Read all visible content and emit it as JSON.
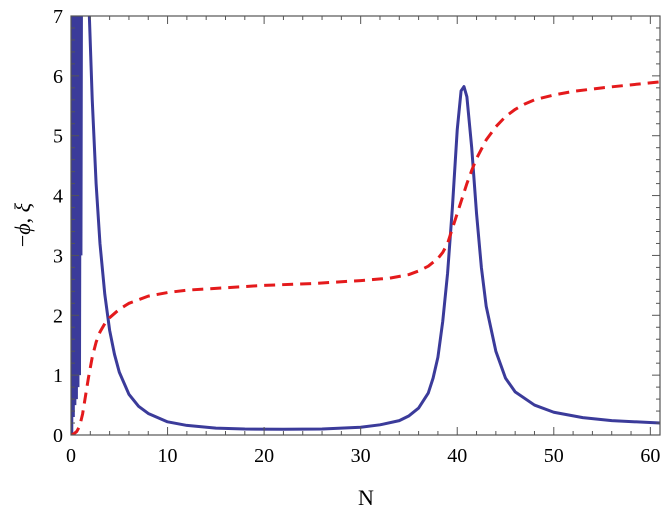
{
  "chart_data": {
    "type": "line",
    "xlabel": "N",
    "ylabel": {
      "minus": "−",
      "phi": "ϕ",
      "sep": ", ",
      "xi": "ξ"
    },
    "xlim": [
      0,
      61
    ],
    "ylim": [
      0,
      7
    ],
    "xticks": [
      0,
      10,
      20,
      30,
      40,
      50,
      60
    ],
    "yticks": [
      0,
      1,
      2,
      3,
      4,
      5,
      6,
      7
    ],
    "grid": false,
    "series": [
      {
        "style": "solid",
        "color": "#3b3b9a",
        "oscillation": {
          "x_start": 0.1,
          "x_end": 1.1,
          "wiggles": [
            [
              0.1,
              0.0
            ],
            [
              0.18,
              7.0
            ],
            [
              0.26,
              0.3
            ],
            [
              0.34,
              7.0
            ],
            [
              0.42,
              0.5
            ],
            [
              0.5,
              7.0
            ],
            [
              0.58,
              0.6
            ],
            [
              0.66,
              7.0
            ],
            [
              0.74,
              0.8
            ],
            [
              0.82,
              7.0
            ],
            [
              0.9,
              1.0
            ],
            [
              0.98,
              7.0
            ],
            [
              1.05,
              3.0
            ],
            [
              1.1,
              7.0
            ]
          ]
        },
        "points": [
          [
            1.9,
            7.0
          ],
          [
            2.2,
            5.6
          ],
          [
            2.6,
            4.2
          ],
          [
            3.0,
            3.2
          ],
          [
            3.5,
            2.35
          ],
          [
            4.0,
            1.75
          ],
          [
            4.5,
            1.35
          ],
          [
            5.0,
            1.05
          ],
          [
            6.0,
            0.68
          ],
          [
            7.0,
            0.48
          ],
          [
            8.0,
            0.36
          ],
          [
            10.0,
            0.22
          ],
          [
            12.0,
            0.16
          ],
          [
            15.0,
            0.115
          ],
          [
            18.0,
            0.1
          ],
          [
            22.0,
            0.095
          ],
          [
            26.0,
            0.1
          ],
          [
            30.0,
            0.13
          ],
          [
            32.0,
            0.17
          ],
          [
            34.0,
            0.24
          ],
          [
            35.0,
            0.32
          ],
          [
            36.0,
            0.45
          ],
          [
            37.0,
            0.7
          ],
          [
            37.5,
            0.95
          ],
          [
            38.0,
            1.3
          ],
          [
            38.5,
            1.9
          ],
          [
            39.0,
            2.7
          ],
          [
            39.5,
            3.8
          ],
          [
            40.0,
            5.1
          ],
          [
            40.4,
            5.75
          ],
          [
            40.7,
            5.82
          ],
          [
            41.0,
            5.65
          ],
          [
            41.5,
            4.8
          ],
          [
            42.0,
            3.7
          ],
          [
            42.5,
            2.8
          ],
          [
            43.0,
            2.15
          ],
          [
            44.0,
            1.4
          ],
          [
            45.0,
            0.95
          ],
          [
            46.0,
            0.72
          ],
          [
            48.0,
            0.5
          ],
          [
            50.0,
            0.38
          ],
          [
            53.0,
            0.29
          ],
          [
            56.0,
            0.24
          ],
          [
            61.0,
            0.2
          ]
        ]
      },
      {
        "style": "dashed",
        "color": "#e41a1c",
        "points": [
          [
            0.0,
            0.0
          ],
          [
            0.3,
            0.02
          ],
          [
            0.6,
            0.06
          ],
          [
            0.9,
            0.15
          ],
          [
            1.2,
            0.35
          ],
          [
            1.5,
            0.65
          ],
          [
            1.8,
            0.95
          ],
          [
            2.2,
            1.3
          ],
          [
            2.6,
            1.55
          ],
          [
            3.0,
            1.72
          ],
          [
            3.5,
            1.86
          ],
          [
            4.0,
            1.96
          ],
          [
            5.0,
            2.1
          ],
          [
            6.0,
            2.2
          ],
          [
            8.0,
            2.32
          ],
          [
            10.0,
            2.38
          ],
          [
            12.0,
            2.42
          ],
          [
            15.0,
            2.45
          ],
          [
            20.0,
            2.5
          ],
          [
            25.0,
            2.53
          ],
          [
            30.0,
            2.58
          ],
          [
            33.0,
            2.62
          ],
          [
            35.0,
            2.68
          ],
          [
            36.0,
            2.74
          ],
          [
            37.0,
            2.82
          ],
          [
            38.0,
            2.95
          ],
          [
            38.5,
            3.05
          ],
          [
            39.0,
            3.2
          ],
          [
            39.5,
            3.45
          ],
          [
            40.0,
            3.7
          ],
          [
            40.5,
            3.95
          ],
          [
            41.0,
            4.2
          ],
          [
            41.5,
            4.42
          ],
          [
            42.0,
            4.62
          ],
          [
            43.0,
            4.93
          ],
          [
            44.0,
            5.15
          ],
          [
            45.0,
            5.32
          ],
          [
            46.0,
            5.44
          ],
          [
            47.0,
            5.53
          ],
          [
            48.0,
            5.6
          ],
          [
            50.0,
            5.68
          ],
          [
            52.0,
            5.74
          ],
          [
            55.0,
            5.8
          ],
          [
            58.0,
            5.85
          ],
          [
            61.0,
            5.9
          ]
        ]
      }
    ]
  }
}
